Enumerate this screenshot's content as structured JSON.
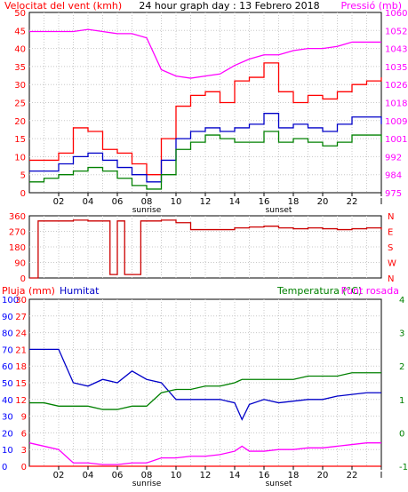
{
  "header": {
    "title": "24 hour graph day : 13 Febrero 2018"
  },
  "colors": {
    "wind_speed": "#ff0000",
    "wind_avg": "#0000c8",
    "wind_low": "#008000",
    "pressure": "#ff00ff",
    "direction": "#cc0000",
    "rain": "#ff0000",
    "humidity": "#0000c8",
    "temperature": "#008000",
    "dewpoint": "#ff00ff",
    "axis_left": "#0000ff",
    "frame": "#000000",
    "grid": "#c8c8c8"
  },
  "time_axis": {
    "ticks": [
      "02",
      "04",
      "06",
      "08",
      "10",
      "12",
      "14",
      "16",
      "18",
      "20",
      "22",
      "I"
    ],
    "sunrise_label": "sunrise",
    "sunset_label": "sunset"
  },
  "chart_data": [
    {
      "type": "line",
      "name": "wind-pressure",
      "left_axis_label": "Velocitat del vent (kmh)",
      "right_axis_label": "Pressió (mb)",
      "ylim": [
        0,
        50
      ],
      "y_ticks": [
        "0",
        "5",
        "10",
        "15",
        "20",
        "25",
        "30",
        "35",
        "40",
        "45",
        "50"
      ],
      "y2lim": [
        975,
        1060
      ],
      "y2_ticks": [
        "975",
        "984",
        "992",
        "1001",
        "1009",
        "1018",
        "1026",
        "1035",
        "1043",
        "1052",
        "1060"
      ],
      "x_hours": [
        0,
        1,
        2,
        3,
        4,
        5,
        6,
        7,
        8,
        9,
        10,
        11,
        12,
        13,
        14,
        15,
        16,
        17,
        18,
        19,
        20,
        21,
        22,
        23,
        24
      ],
      "series": [
        {
          "role": "wind_speed",
          "values": [
            9,
            9,
            11,
            18,
            17,
            12,
            11,
            8,
            5,
            15,
            24,
            27,
            28,
            25,
            31,
            32,
            36,
            28,
            25,
            27,
            26,
            28,
            30,
            31,
            32
          ]
        },
        {
          "role": "wind_avg",
          "values": [
            6,
            6,
            8,
            10,
            11,
            9,
            7,
            5,
            3,
            9,
            15,
            17,
            18,
            17,
            18,
            19,
            22,
            18,
            19,
            18,
            17,
            19,
            21,
            21,
            19
          ]
        },
        {
          "role": "wind_low",
          "values": [
            3,
            4,
            5,
            6,
            7,
            6,
            4,
            2,
            1,
            5,
            12,
            14,
            16,
            15,
            14,
            14,
            17,
            14,
            15,
            14,
            13,
            14,
            16,
            16,
            14
          ]
        },
        {
          "role": "pressure",
          "values": [
            1051,
            1051,
            1051,
            1051,
            1052,
            1051,
            1050,
            1050,
            1048,
            1033,
            1030,
            1029,
            1030,
            1031,
            1035,
            1038,
            1040,
            1040,
            1042,
            1043,
            1043,
            1044,
            1046,
            1046,
            1046
          ]
        }
      ]
    },
    {
      "type": "line",
      "name": "wind-direction",
      "ylim": [
        0,
        360
      ],
      "y_ticks": [
        "0",
        "90",
        "180",
        "270",
        "360"
      ],
      "cardinals": [
        "N",
        "W",
        "S",
        "E",
        "N"
      ],
      "x_hours": [
        0,
        0.5,
        0.6,
        1,
        2,
        3,
        4,
        5,
        5.4,
        5.5,
        6,
        6.5,
        7,
        7.6,
        7.7,
        8,
        9,
        10,
        11,
        12,
        13,
        14,
        15,
        16,
        17,
        18,
        19,
        20,
        21,
        22,
        23,
        24
      ],
      "values": [
        0,
        0,
        330,
        330,
        330,
        335,
        330,
        330,
        330,
        20,
        330,
        20,
        20,
        330,
        330,
        330,
        335,
        320,
        280,
        280,
        280,
        290,
        295,
        300,
        290,
        285,
        290,
        285,
        280,
        285,
        290,
        280
      ]
    },
    {
      "type": "line",
      "name": "humidity-temperature",
      "left_axis_label": "Pluja (mm)",
      "left2_axis_label": "Humitat",
      "right_axis_label": "Temperatura (°C)",
      "right2_axis_label": "Punt rosada",
      "rain_ticks": [
        "0",
        "3",
        "6",
        "9",
        "12",
        "15",
        "18",
        "21",
        "24",
        "27",
        "30"
      ],
      "humidity_ticks": [
        "0",
        "10",
        "20",
        "30",
        "40",
        "50",
        "60",
        "70",
        "80",
        "90",
        "100"
      ],
      "humidity_lim": [
        0,
        100
      ],
      "temp_ticks": [
        "-1",
        "0",
        "1",
        "2",
        "3",
        "4"
      ],
      "temp_lim": [
        -1,
        4
      ],
      "x_hours": [
        0,
        1,
        2,
        2.5,
        3,
        4,
        5,
        6,
        7,
        8,
        9,
        10,
        11,
        12,
        13,
        14,
        14.5,
        15,
        16,
        17,
        18,
        19,
        20,
        21,
        22,
        23,
        24
      ],
      "series": [
        {
          "role": "humidity",
          "values": [
            70,
            70,
            70,
            60,
            50,
            48,
            52,
            50,
            57,
            52,
            50,
            40,
            40,
            40,
            40,
            38,
            28,
            37,
            40,
            38,
            39,
            40,
            40,
            42,
            43,
            44,
            44
          ]
        },
        {
          "role": "temperature",
          "values": [
            0.9,
            0.9,
            0.8,
            0.8,
            0.8,
            0.8,
            0.7,
            0.7,
            0.8,
            0.8,
            1.2,
            1.3,
            1.3,
            1.4,
            1.4,
            1.5,
            1.6,
            1.6,
            1.6,
            1.6,
            1.6,
            1.7,
            1.7,
            1.7,
            1.8,
            1.8,
            1.8
          ]
        },
        {
          "role": "dewpoint",
          "values": [
            -0.3,
            -0.4,
            -0.5,
            -0.7,
            -0.9,
            -0.9,
            -0.95,
            -0.95,
            -0.9,
            -0.9,
            -0.75,
            -0.75,
            -0.7,
            -0.7,
            -0.65,
            -0.55,
            -0.4,
            -0.55,
            -0.55,
            -0.5,
            -0.5,
            -0.45,
            -0.45,
            -0.4,
            -0.35,
            -0.3,
            -0.3
          ]
        },
        {
          "role": "rain",
          "values": [
            0,
            0,
            0,
            0,
            0,
            0,
            0,
            0,
            0,
            0,
            0,
            0,
            0,
            0,
            0,
            0,
            0,
            0,
            0,
            0,
            0,
            0,
            0,
            0,
            0,
            0,
            0
          ]
        }
      ]
    }
  ]
}
